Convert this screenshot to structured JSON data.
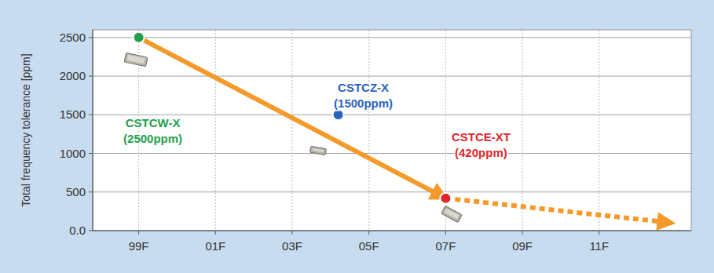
{
  "chart_data": {
    "type": "scatter",
    "y_label": "Total frequency tolerance [ppm]",
    "xlim": [
      1997.8,
      2013.4
    ],
    "xticks": [
      {
        "value": 1999,
        "label": "99F"
      },
      {
        "value": 2001,
        "label": "01F"
      },
      {
        "value": 2003,
        "label": "03F"
      },
      {
        "value": 2005,
        "label": "05F"
      },
      {
        "value": 2007,
        "label": "07F"
      },
      {
        "value": 2009,
        "label": "09F"
      },
      {
        "value": 2011,
        "label": "11F"
      }
    ],
    "ylim": [
      0,
      2600
    ],
    "yticks": [
      {
        "value": 0,
        "label": "0.0"
      },
      500,
      1000,
      1500,
      2000,
      2500
    ],
    "grid": true,
    "data_labels": true,
    "series": [
      {
        "type": "line",
        "color": "#f39a2b",
        "line_style": "solid",
        "x": [
          1999,
          2007
        ],
        "values": [
          2500,
          420
        ]
      },
      {
        "type": "line",
        "color": "#f39a2b",
        "line_style": "dotted",
        "x": [
          2007,
          2012.9
        ],
        "values": [
          420,
          100
        ]
      },
      {
        "name": "CSTCW-X",
        "color": "#22a04c",
        "marker": "circle",
        "x": [
          1999
        ],
        "values": [
          2500
        ],
        "value_labels": [
          "(2500ppm)"
        ]
      },
      {
        "name": "CSTCZ-X",
        "color": "#2a62c0",
        "marker": "circle",
        "x": [
          2004.2
        ],
        "values": [
          1500
        ],
        "value_labels": [
          "(1500ppm)"
        ]
      },
      {
        "name": "CSTCE-XT",
        "color": "#e1262c",
        "marker": "circle",
        "x": [
          2007
        ],
        "values": [
          420
        ],
        "value_labels": [
          "(420ppm)"
        ]
      }
    ]
  }
}
